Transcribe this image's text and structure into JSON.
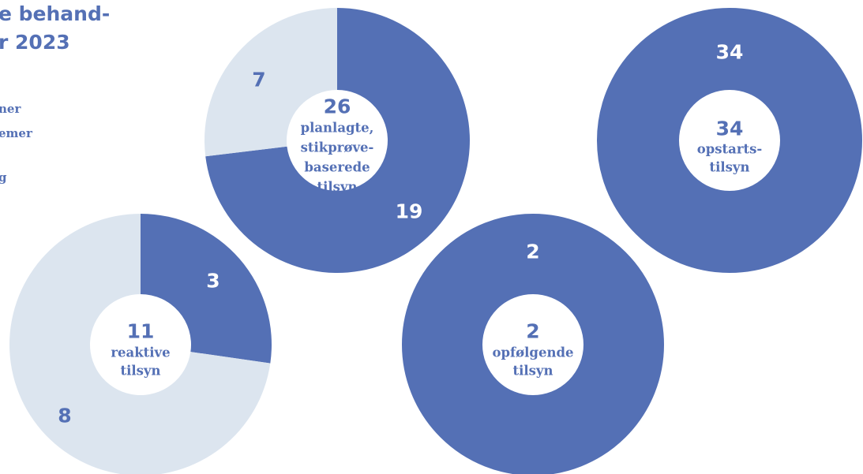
{
  "heading": {
    "lines": [
      "e behand-",
      "r 2023"
    ]
  },
  "legend_items": [
    "ner",
    "emer",
    "g"
  ],
  "colors": {
    "primary": "#5470b5",
    "secondary": "#dce5ef",
    "text": "#5470b5",
    "on_primary": "#ffffff"
  },
  "chart_data": [
    {
      "type": "donut",
      "total": "26",
      "center_label_lines": [
        "planlagte,",
        "stikprøve-",
        "baserede",
        "tilsyn"
      ],
      "segments": [
        {
          "value": 19,
          "label": "19",
          "color": "#5470b5"
        },
        {
          "value": 7,
          "label": "7",
          "color": "#dce5ef"
        }
      ]
    },
    {
      "type": "donut",
      "total": "34",
      "center_label_lines": [
        "opstarts-",
        "tilsyn"
      ],
      "segments": [
        {
          "value": 34,
          "label": "34",
          "color": "#5470b5"
        }
      ]
    },
    {
      "type": "donut",
      "total": "11",
      "center_label_lines": [
        "reaktive",
        "tilsyn"
      ],
      "segments": [
        {
          "value": 3,
          "label": "3",
          "color": "#5470b5"
        },
        {
          "value": 8,
          "label": "8",
          "color": "#dce5ef"
        }
      ]
    },
    {
      "type": "donut",
      "total": "2",
      "center_label_lines": [
        "opfølgende",
        "tilsyn"
      ],
      "segments": [
        {
          "value": 2,
          "label": "2",
          "color": "#5470b5"
        }
      ]
    }
  ]
}
